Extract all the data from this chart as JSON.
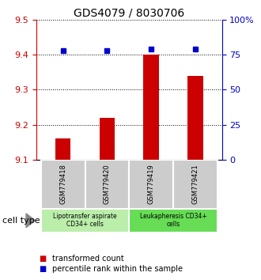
{
  "title": "GDS4079 / 8030706",
  "samples": [
    "GSM779418",
    "GSM779420",
    "GSM779419",
    "GSM779421"
  ],
  "bar_values": [
    9.16,
    9.22,
    9.4,
    9.34
  ],
  "percentile_values": [
    78,
    78,
    79,
    79
  ],
  "ylim_left": [
    9.1,
    9.5
  ],
  "ylim_right": [
    0,
    100
  ],
  "yticks_left": [
    9.1,
    9.2,
    9.3,
    9.4,
    9.5
  ],
  "yticks_right": [
    0,
    25,
    50,
    75,
    100
  ],
  "ytick_labels_right": [
    "0",
    "25",
    "50",
    "75",
    "100%"
  ],
  "bar_color": "#cc0000",
  "dot_color": "#0000cc",
  "bar_bottom": 9.1,
  "groups": [
    {
      "label": "Lipotransfer aspirate\nCD34+ cells",
      "color": "#bbeeaa",
      "indices": [
        0,
        1
      ]
    },
    {
      "label": "Leukapheresis CD34+\ncells",
      "color": "#66dd55",
      "indices": [
        2,
        3
      ]
    }
  ],
  "cell_type_label": "cell type",
  "legend_bar_label": "transformed count",
  "legend_dot_label": "percentile rank within the sample",
  "title_fontsize": 10,
  "tick_fontsize": 8,
  "label_fontsize": 8,
  "sample_box_color": "#cccccc",
  "bar_width": 0.35
}
